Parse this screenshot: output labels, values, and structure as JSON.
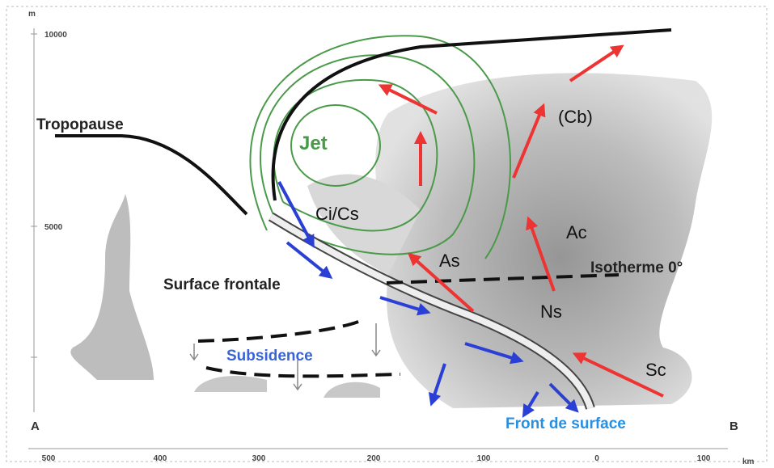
{
  "axes": {
    "y_unit": "m",
    "y_labels": [
      "10000",
      "5000"
    ],
    "x_labels": [
      "500",
      "400",
      "300",
      "200",
      "100",
      "0",
      "100"
    ],
    "x_unit": "km",
    "left_end": "A",
    "right_end": "B"
  },
  "labels": {
    "tropopause": "Tropopause",
    "jet": "Jet",
    "ci_cs": "Ci/Cs",
    "cb": "(Cb)",
    "ac": "Ac",
    "as": "As",
    "isotherme": "Isotherme 0°",
    "surface_frontale": "Surface frontale",
    "ns": "Ns",
    "subsidence": "Subsidence",
    "sc": "Sc",
    "front_de_surface": "Front de surface"
  }
}
